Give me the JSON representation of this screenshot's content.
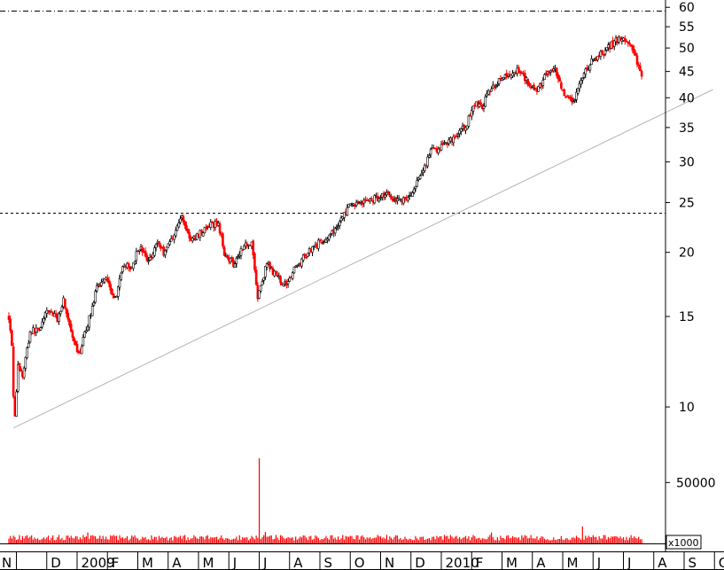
{
  "chart_data": {
    "type": "candlestick",
    "title": "",
    "xlabel": "",
    "ylabel": "",
    "price_scale": "log",
    "price_ylim": [
      8.6,
      62
    ],
    "price_ticks": [
      60,
      55,
      50,
      45,
      40,
      35,
      30,
      25,
      20,
      15,
      10
    ],
    "volume_ylim": [
      0,
      75000
    ],
    "volume_ticks": [
      50000,
      0
    ],
    "volume_unit": "x1000",
    "month_labels": [
      "N",
      "D",
      "2009",
      "F",
      "M",
      "A",
      "M",
      "J",
      "J",
      "A",
      "S",
      "O",
      "N",
      "D",
      "2010",
      "F",
      "M",
      "A",
      "M",
      "J",
      "J",
      "A",
      "S",
      "O"
    ],
    "colors": {
      "up": "#000000",
      "down": "#ff0000",
      "volume": "#ff0000",
      "trendline": "#b4b4b4",
      "guides": "#000000"
    },
    "horizontal_lines": [
      {
        "style": "dash-dot",
        "value": 59
      },
      {
        "style": "dashed",
        "value": 23.9
      }
    ],
    "trendline": {
      "from": {
        "month_index": 0.15,
        "price": 9.1
      },
      "to": {
        "month_index": 23.2,
        "price": 41.5
      }
    },
    "price_path": [
      [
        0.0,
        15.0
      ],
      [
        0.12,
        13.0
      ],
      [
        0.17,
        9.1
      ],
      [
        0.3,
        12.0
      ],
      [
        0.45,
        11.5
      ],
      [
        0.7,
        14.0
      ],
      [
        1.0,
        14.2
      ],
      [
        1.3,
        15.5
      ],
      [
        1.6,
        14.8
      ],
      [
        1.8,
        16.2
      ],
      [
        2.1,
        13.5
      ],
      [
        2.3,
        12.6
      ],
      [
        2.6,
        14.5
      ],
      [
        2.9,
        17.0
      ],
      [
        3.2,
        18.0
      ],
      [
        3.5,
        16.2
      ],
      [
        3.8,
        19.0
      ],
      [
        4.0,
        18.5
      ],
      [
        4.3,
        20.5
      ],
      [
        4.6,
        19.2
      ],
      [
        4.9,
        21.0
      ],
      [
        5.1,
        20.0
      ],
      [
        5.4,
        21.5
      ],
      [
        5.7,
        23.5
      ],
      [
        6.0,
        21.0
      ],
      [
        6.3,
        21.8
      ],
      [
        6.6,
        22.5
      ],
      [
        6.9,
        22.8
      ],
      [
        7.1,
        20.0
      ],
      [
        7.4,
        19.0
      ],
      [
        7.7,
        20.5
      ],
      [
        8.0,
        21.0
      ],
      [
        8.2,
        16.3
      ],
      [
        8.5,
        19.0
      ],
      [
        8.8,
        18.0
      ],
      [
        9.1,
        17.3
      ],
      [
        9.4,
        18.5
      ],
      [
        9.7,
        19.5
      ],
      [
        10.0,
        20.5
      ],
      [
        10.3,
        21.0
      ],
      [
        10.6,
        21.5
      ],
      [
        10.9,
        23.0
      ],
      [
        11.2,
        24.5
      ],
      [
        11.5,
        25.0
      ],
      [
        11.8,
        25.2
      ],
      [
        12.1,
        25.5
      ],
      [
        12.4,
        26.0
      ],
      [
        12.7,
        25.5
      ],
      [
        13.0,
        25.3
      ],
      [
        13.3,
        26.0
      ],
      [
        13.6,
        28.5
      ],
      [
        13.9,
        31.5
      ],
      [
        14.2,
        32.0
      ],
      [
        14.5,
        33.0
      ],
      [
        14.8,
        34.0
      ],
      [
        15.1,
        35.5
      ],
      [
        15.3,
        39.0
      ],
      [
        15.6,
        38.5
      ],
      [
        15.9,
        42.0
      ],
      [
        16.2,
        43.5
      ],
      [
        16.5,
        44.0
      ],
      [
        16.8,
        45.5
      ],
      [
        17.1,
        43.0
      ],
      [
        17.4,
        41.0
      ],
      [
        17.7,
        44.5
      ],
      [
        18.0,
        45.0
      ],
      [
        18.3,
        40.0
      ],
      [
        18.6,
        39.0
      ],
      [
        18.9,
        44.0
      ],
      [
        19.2,
        47.0
      ],
      [
        19.5,
        48.5
      ],
      [
        19.8,
        50.5
      ],
      [
        20.1,
        52.0
      ],
      [
        20.4,
        51.5
      ],
      [
        20.7,
        47.0
      ],
      [
        20.85,
        44.0
      ]
    ],
    "volume_spikes": [
      {
        "month_index": 2.6,
        "value": 9000
      },
      {
        "month_index": 8.25,
        "value": 70000
      },
      {
        "month_index": 8.45,
        "value": 9500
      },
      {
        "month_index": 15.9,
        "value": 9000
      },
      {
        "month_index": 18.9,
        "value": 14000
      }
    ]
  }
}
